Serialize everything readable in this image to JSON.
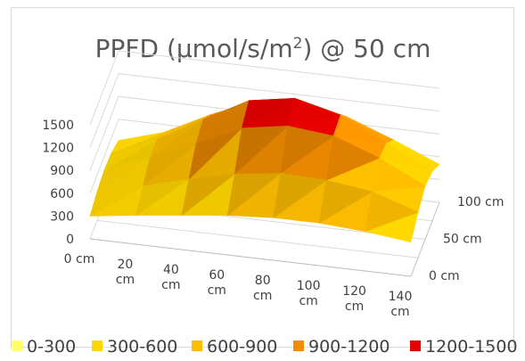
{
  "chart_data": {
    "type": "surface-3d",
    "title": {
      "main": "PPFD (µmol/s/m",
      "superscript": "2",
      "suffix": ") @ 50 cm"
    },
    "z_axis": {
      "ticks": [
        0,
        300,
        600,
        900,
        1200,
        1500
      ],
      "tick_labels": [
        "0",
        "300",
        "600",
        "900",
        "1200",
        "1500"
      ],
      "range": [
        0,
        1500
      ]
    },
    "x_axis": {
      "values": [
        0,
        20,
        40,
        60,
        80,
        100,
        120,
        140
      ],
      "tick_labels": [
        [
          "0 cm"
        ],
        [
          "20",
          "cm"
        ],
        [
          "40",
          "cm"
        ],
        [
          "60",
          "cm"
        ],
        [
          "80",
          "cm"
        ],
        [
          "100",
          "cm"
        ],
        [
          "120",
          "cm"
        ],
        [
          "140",
          "cm"
        ]
      ]
    },
    "y_axis": {
      "values": [
        0,
        50,
        100
      ],
      "tick_labels": [
        "0 cm",
        "50 cm",
        "100 cm"
      ]
    },
    "y_grid": [
      0,
      25,
      50,
      75,
      100
    ],
    "surface": [
      [
        300,
        380,
        450,
        520,
        560,
        560,
        520,
        450
      ],
      [
        380,
        520,
        680,
        820,
        900,
        880,
        800,
        600
      ],
      [
        420,
        650,
        900,
        1180,
        1280,
        1220,
        1000,
        700
      ],
      [
        400,
        650,
        980,
        1300,
        1400,
        1250,
        950,
        650
      ],
      [
        320,
        500,
        800,
        1050,
        1100,
        980,
        750,
        500
      ]
    ],
    "legend": {
      "position": "bottom",
      "entries": [
        {
          "label": "0-300",
          "range": [
            0,
            300
          ],
          "color": "#ffff66"
        },
        {
          "label": "300-600",
          "range": [
            300,
            600
          ],
          "color": "#ffd700"
        },
        {
          "label": "600-900",
          "range": [
            600,
            900
          ],
          "color": "#ffbe00"
        },
        {
          "label": "900-1200",
          "range": [
            900,
            1200
          ],
          "color": "#f28c00"
        },
        {
          "label": "1200-1500",
          "range": [
            1200,
            1500
          ],
          "color": "#e60000"
        }
      ]
    },
    "grid": true
  }
}
